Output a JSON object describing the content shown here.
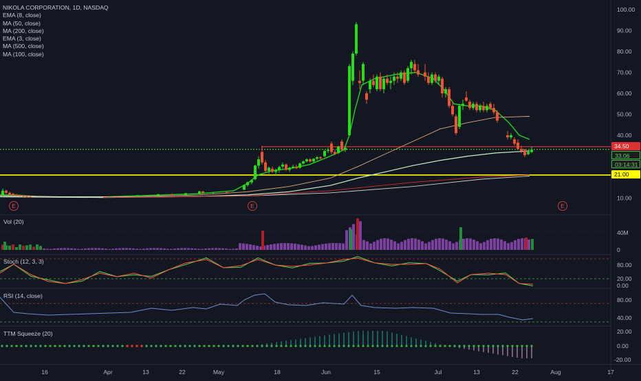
{
  "header": {
    "title": "NIKOLA CORPORATION, 1D, NASDAQ",
    "indicators": [
      "EMA (8, close)",
      "MA (50, close)",
      "MA (200, close)",
      "EMA (3, close)",
      "MA (500, close)",
      "MA (100, close)"
    ]
  },
  "panes": {
    "vol": "Vol (20)",
    "stoch": "Stoch (12, 3, 3)",
    "rsi": "RSI (14, close)",
    "ttm": "TTM Squeeze (20)"
  },
  "tags": {
    "red_level": "34.50",
    "last_price": "33.06",
    "countdown": "03:14:31",
    "yellow_level": "21.00"
  },
  "axis_labels": {
    "price": [
      "100.00",
      "90.00",
      "80.00",
      "70.00",
      "60.00",
      "50.00",
      "40.00",
      "10.00"
    ],
    "vol": [
      "40M",
      "0"
    ],
    "stoch": [
      "80.00",
      "20.00",
      "0.00"
    ],
    "rsi": [
      "80.00",
      "40.00"
    ],
    "ttm": [
      "20.00",
      "0.00",
      "-20.00"
    ],
    "time": [
      "16",
      "Apr",
      "13",
      "22",
      "May",
      "18",
      "Jun",
      "15",
      "Jul",
      "13",
      "22",
      "Aug",
      "17"
    ]
  },
  "earnings_marker": "E",
  "colors": {
    "background": "#131722",
    "up": "#26de18",
    "down": "#f0532d",
    "ema8": "#21d021",
    "ma50": "#e0a981",
    "ma200": "#d0d0d0",
    "ma100": "#c7f0c7",
    "ma500": "#d32f2f",
    "hline_red": "#ff3a3a",
    "hline_yellow": "#ffff00",
    "hline_green_dotted": "#30d030",
    "stoch_k": "#ff5a3a",
    "stoch_d": "#5ad05a",
    "rsi": "#6b8fd0",
    "ttm_up": "#26a69a",
    "ttm_down": "#e1a0d8",
    "vol_purple": "#7b3fa0",
    "vol_up": "#1f8f3a",
    "vol_down": "#b01c2a"
  },
  "chart_data": {
    "type": "candlestick",
    "title": "NIKOLA CORPORATION, 1D, NASDAQ",
    "price_range": [
      5,
      100
    ],
    "horizontal_levels": [
      34.5,
      33.06,
      21.0
    ],
    "series": [
      {
        "name": "EMA (8, close)",
        "points": [
          [
            0,
            11.5
          ],
          [
            20,
            11.5
          ],
          [
            60,
            10.6
          ],
          [
            150,
            10.5
          ],
          [
            220,
            11.3
          ],
          [
            290,
            12.1
          ],
          [
            340,
            13.5
          ],
          [
            360,
            17
          ],
          [
            375,
            21
          ],
          [
            395,
            23
          ],
          [
            420,
            24
          ],
          [
            450,
            26
          ],
          [
            480,
            30
          ],
          [
            500,
            33
          ],
          [
            508,
            40
          ],
          [
            516,
            52
          ],
          [
            526,
            64
          ],
          [
            545,
            67
          ],
          [
            575,
            69
          ],
          [
            605,
            70
          ],
          [
            630,
            67
          ],
          [
            645,
            62
          ],
          [
            660,
            55
          ],
          [
            680,
            54
          ],
          [
            700,
            54
          ],
          [
            720,
            52
          ],
          [
            740,
            46
          ],
          [
            755,
            40
          ],
          [
            770,
            38
          ]
        ]
      },
      {
        "name": "MA (50, close)",
        "points": [
          [
            0,
            11.2
          ],
          [
            100,
            10.6
          ],
          [
            200,
            10.7
          ],
          [
            290,
            11.5
          ],
          [
            360,
            13
          ],
          [
            420,
            15.5
          ],
          [
            480,
            19.5
          ],
          [
            520,
            25
          ],
          [
            560,
            31
          ],
          [
            600,
            37
          ],
          [
            640,
            43
          ],
          [
            680,
            46
          ],
          [
            720,
            48.5
          ],
          [
            770,
            49
          ]
        ]
      },
      {
        "name": "MA (100, close)",
        "points": [
          [
            0,
            10.6
          ],
          [
            150,
            10.3
          ],
          [
            290,
            10.8
          ],
          [
            360,
            11.5
          ],
          [
            420,
            13
          ],
          [
            480,
            16
          ],
          [
            520,
            19.5
          ],
          [
            560,
            22.5
          ],
          [
            600,
            25.5
          ],
          [
            640,
            28
          ],
          [
            680,
            30
          ],
          [
            720,
            31.5
          ],
          [
            770,
            32.5
          ]
        ]
      },
      {
        "name": "MA (200, close)",
        "points": [
          [
            0,
            10.8
          ],
          [
            200,
            10.5
          ],
          [
            360,
            11
          ],
          [
            480,
            12.5
          ],
          [
            600,
            15.5
          ],
          [
            700,
            19
          ],
          [
            770,
            20.5
          ]
        ]
      },
      {
        "name": "MA (500, close)",
        "points": [
          [
            150,
            10.3
          ],
          [
            360,
            11
          ],
          [
            480,
            13.5
          ],
          [
            600,
            17.5
          ],
          [
            700,
            20
          ],
          [
            770,
            21
          ]
        ]
      }
    ],
    "candles": [
      {
        "x": 4,
        "o": 11.5,
        "h": 14.5,
        "l": 10.5,
        "c": 13.5
      },
      {
        "x": 9,
        "o": 13.5,
        "h": 14,
        "l": 12,
        "c": 12.5
      },
      {
        "x": 14,
        "o": 12.5,
        "h": 13,
        "l": 11.5,
        "c": 11.8
      },
      {
        "x": 19,
        "o": 12,
        "h": 12.5,
        "l": 11,
        "c": 11.5
      },
      {
        "x": 24,
        "o": 11.5,
        "h": 12,
        "l": 11,
        "c": 11.3
      },
      {
        "x": 29,
        "o": 11.3,
        "h": 11.8,
        "l": 10.8,
        "c": 11
      },
      {
        "x": 34,
        "o": 11,
        "h": 11.5,
        "l": 10.5,
        "c": 10.8
      },
      {
        "x": 39,
        "o": 10.8,
        "h": 11.2,
        "l": 10.4,
        "c": 10.6
      },
      {
        "x": 44,
        "o": 10.6,
        "h": 11,
        "l": 10.2,
        "c": 10.5
      },
      {
        "x": 160,
        "o": 10.5,
        "h": 11,
        "l": 10.2,
        "c": 10.8
      },
      {
        "x": 200,
        "o": 10.8,
        "h": 11.5,
        "l": 10.5,
        "c": 11.2
      },
      {
        "x": 230,
        "o": 11,
        "h": 12,
        "l": 10.8,
        "c": 11.8
      },
      {
        "x": 250,
        "o": 11.8,
        "h": 12.2,
        "l": 11.2,
        "c": 11.5
      },
      {
        "x": 270,
        "o": 11.5,
        "h": 12.5,
        "l": 11.3,
        "c": 12.3
      },
      {
        "x": 290,
        "o": 12,
        "h": 13.5,
        "l": 11.8,
        "c": 13.2
      },
      {
        "x": 295,
        "o": 13.2,
        "h": 13.5,
        "l": 12.3,
        "c": 12.5
      },
      {
        "x": 310,
        "o": 12.5,
        "h": 13,
        "l": 12,
        "c": 12.8
      },
      {
        "x": 330,
        "o": 12.8,
        "h": 13.3,
        "l": 12.2,
        "c": 12.6
      },
      {
        "x": 355,
        "o": 14,
        "h": 16.5,
        "l": 13.8,
        "c": 16.2
      },
      {
        "x": 360,
        "o": 16.2,
        "h": 18,
        "l": 15.5,
        "c": 17.5
      },
      {
        "x": 366,
        "o": 17.5,
        "h": 19,
        "l": 16.5,
        "c": 18.5
      },
      {
        "x": 371,
        "o": 19,
        "h": 26,
        "l": 18.5,
        "c": 25.5
      },
      {
        "x": 376,
        "o": 25.5,
        "h": 30,
        "l": 24,
        "c": 28.5
      },
      {
        "x": 381,
        "o": 32,
        "h": 35,
        "l": 26,
        "c": 27
      },
      {
        "x": 386,
        "o": 27,
        "h": 28,
        "l": 22,
        "c": 23
      },
      {
        "x": 391,
        "o": 23,
        "h": 25,
        "l": 21.5,
        "c": 24.5
      },
      {
        "x": 396,
        "o": 24,
        "h": 25,
        "l": 22,
        "c": 22.5
      },
      {
        "x": 401,
        "o": 22.5,
        "h": 24,
        "l": 21,
        "c": 23.5
      },
      {
        "x": 406,
        "o": 23.5,
        "h": 25.5,
        "l": 22,
        "c": 24.8
      },
      {
        "x": 411,
        "o": 25,
        "h": 27,
        "l": 24,
        "c": 26
      },
      {
        "x": 416,
        "o": 26,
        "h": 26.5,
        "l": 23,
        "c": 23.5
      },
      {
        "x": 421,
        "o": 23.5,
        "h": 25,
        "l": 22.5,
        "c": 24.5
      },
      {
        "x": 426,
        "o": 24.5,
        "h": 26,
        "l": 24,
        "c": 25
      },
      {
        "x": 431,
        "o": 25,
        "h": 26,
        "l": 23.8,
        "c": 24.2
      },
      {
        "x": 436,
        "o": 24.5,
        "h": 27,
        "l": 24,
        "c": 26.5
      },
      {
        "x": 441,
        "o": 26.5,
        "h": 28,
        "l": 26,
        "c": 27.5
      },
      {
        "x": 446,
        "o": 27.5,
        "h": 29,
        "l": 27,
        "c": 28.5
      },
      {
        "x": 451,
        "o": 28.5,
        "h": 29,
        "l": 27,
        "c": 27.5
      },
      {
        "x": 456,
        "o": 27.5,
        "h": 29,
        "l": 27,
        "c": 28.8
      },
      {
        "x": 461,
        "o": 28.8,
        "h": 30,
        "l": 28,
        "c": 29.5
      },
      {
        "x": 466,
        "o": 29.5,
        "h": 30,
        "l": 28.5,
        "c": 29
      },
      {
        "x": 472,
        "o": 30,
        "h": 33,
        "l": 29.5,
        "c": 32.5
      },
      {
        "x": 477,
        "o": 32.5,
        "h": 34,
        "l": 31.5,
        "c": 33
      },
      {
        "x": 482,
        "o": 36,
        "h": 37,
        "l": 31,
        "c": 32
      },
      {
        "x": 487,
        "o": 32,
        "h": 33,
        "l": 30.5,
        "c": 31
      },
      {
        "x": 492,
        "o": 31.5,
        "h": 35,
        "l": 31,
        "c": 34.5
      },
      {
        "x": 497,
        "o": 37,
        "h": 38,
        "l": 32.5,
        "c": 33
      },
      {
        "x": 502,
        "o": 33,
        "h": 35,
        "l": 32,
        "c": 34
      },
      {
        "x": 508,
        "o": 40,
        "h": 74,
        "l": 40,
        "c": 73
      },
      {
        "x": 513,
        "o": 66,
        "h": 80,
        "l": 64,
        "c": 79
      },
      {
        "x": 518,
        "o": 79,
        "h": 94,
        "l": 78,
        "c": 93
      },
      {
        "x": 523,
        "o": 66,
        "h": 71,
        "l": 62,
        "c": 65
      },
      {
        "x": 528,
        "o": 66,
        "h": 75,
        "l": 64,
        "c": 74
      },
      {
        "x": 533,
        "o": 60,
        "h": 61,
        "l": 55,
        "c": 57
      },
      {
        "x": 538,
        "o": 62,
        "h": 67,
        "l": 60,
        "c": 66
      },
      {
        "x": 543,
        "o": 66,
        "h": 69,
        "l": 63,
        "c": 64
      },
      {
        "x": 548,
        "o": 62,
        "h": 69,
        "l": 61,
        "c": 68
      },
      {
        "x": 553,
        "o": 68,
        "h": 70,
        "l": 61,
        "c": 62
      },
      {
        "x": 558,
        "o": 62,
        "h": 68,
        "l": 60,
        "c": 67
      },
      {
        "x": 563,
        "o": 67,
        "h": 69,
        "l": 64,
        "c": 65
      },
      {
        "x": 568,
        "o": 65,
        "h": 68,
        "l": 62,
        "c": 66
      },
      {
        "x": 573,
        "o": 66,
        "h": 70,
        "l": 64,
        "c": 68
      },
      {
        "x": 578,
        "o": 68,
        "h": 70,
        "l": 65,
        "c": 67
      },
      {
        "x": 583,
        "o": 67,
        "h": 71,
        "l": 66,
        "c": 70
      },
      {
        "x": 588,
        "o": 70,
        "h": 71,
        "l": 64,
        "c": 65
      },
      {
        "x": 593,
        "o": 66,
        "h": 73,
        "l": 65,
        "c": 72
      },
      {
        "x": 598,
        "o": 72,
        "h": 76,
        "l": 69,
        "c": 75
      },
      {
        "x": 603,
        "o": 74,
        "h": 76,
        "l": 70,
        "c": 71
      },
      {
        "x": 608,
        "o": 71,
        "h": 74,
        "l": 68,
        "c": 69
      },
      {
        "x": 618,
        "o": 70,
        "h": 74,
        "l": 66,
        "c": 68
      },
      {
        "x": 623,
        "o": 68,
        "h": 70,
        "l": 64,
        "c": 65
      },
      {
        "x": 628,
        "o": 65,
        "h": 70,
        "l": 64,
        "c": 69
      },
      {
        "x": 633,
        "o": 69,
        "h": 70,
        "l": 65,
        "c": 66
      },
      {
        "x": 638,
        "o": 66,
        "h": 69,
        "l": 64,
        "c": 68
      },
      {
        "x": 643,
        "o": 67,
        "h": 68,
        "l": 58,
        "c": 60
      },
      {
        "x": 648,
        "o": 60,
        "h": 63,
        "l": 58,
        "c": 62
      },
      {
        "x": 653,
        "o": 62,
        "h": 63,
        "l": 53,
        "c": 54
      },
      {
        "x": 658,
        "o": 54,
        "h": 56,
        "l": 49,
        "c": 50
      },
      {
        "x": 663,
        "o": 49,
        "h": 50,
        "l": 40,
        "c": 41
      },
      {
        "x": 668,
        "o": 44,
        "h": 55,
        "l": 43,
        "c": 54
      },
      {
        "x": 673,
        "o": 54,
        "h": 57,
        "l": 52,
        "c": 55
      },
      {
        "x": 678,
        "o": 58,
        "h": 61,
        "l": 56,
        "c": 56.5
      },
      {
        "x": 683,
        "o": 56,
        "h": 57,
        "l": 52,
        "c": 53
      },
      {
        "x": 688,
        "o": 53,
        "h": 56,
        "l": 52,
        "c": 55
      },
      {
        "x": 693,
        "o": 55,
        "h": 56,
        "l": 51,
        "c": 52
      },
      {
        "x": 698,
        "o": 52,
        "h": 55,
        "l": 51,
        "c": 54
      },
      {
        "x": 703,
        "o": 54,
        "h": 56,
        "l": 51,
        "c": 52
      },
      {
        "x": 708,
        "o": 52,
        "h": 55,
        "l": 51,
        "c": 54
      },
      {
        "x": 713,
        "o": 55,
        "h": 56,
        "l": 52,
        "c": 53
      },
      {
        "x": 718,
        "o": 53,
        "h": 55,
        "l": 50,
        "c": 51
      },
      {
        "x": 723,
        "o": 51,
        "h": 52,
        "l": 46,
        "c": 47
      },
      {
        "x": 738,
        "o": 40,
        "h": 42,
        "l": 38,
        "c": 39
      },
      {
        "x": 743,
        "o": 39,
        "h": 41,
        "l": 38,
        "c": 40
      },
      {
        "x": 748,
        "o": 38,
        "h": 39,
        "l": 35,
        "c": 36
      },
      {
        "x": 753,
        "o": 36.5,
        "h": 38,
        "l": 33,
        "c": 33.5
      },
      {
        "x": 758,
        "o": 33.5,
        "h": 35,
        "l": 31.5,
        "c": 32.5
      },
      {
        "x": 763,
        "o": 33,
        "h": 33.5,
        "l": 29.5,
        "c": 30.5
      },
      {
        "x": 768,
        "o": 31,
        "h": 33,
        "l": 30.5,
        "c": 32
      },
      {
        "x": 773,
        "o": 32,
        "h": 34.5,
        "l": 31.5,
        "c": 33.06
      }
    ]
  }
}
